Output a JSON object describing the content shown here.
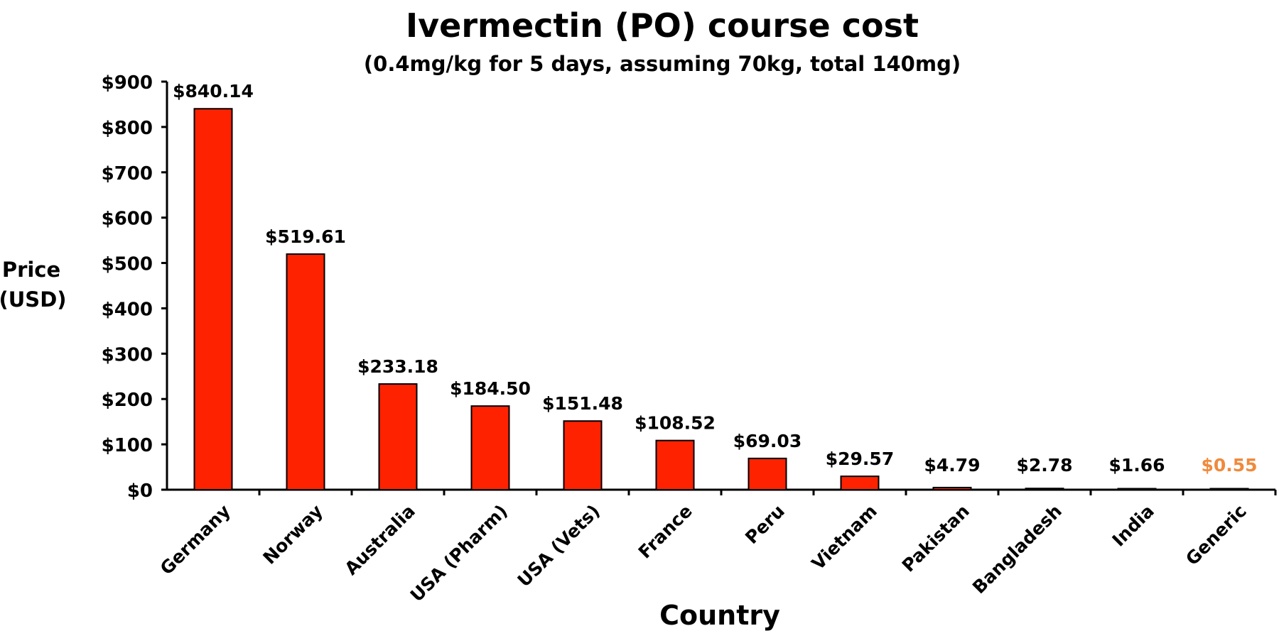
{
  "chart_data": {
    "type": "bar",
    "title": "Ivermectin (PO) course cost",
    "subtitle": "(0.4mg/kg for 5 days, assuming 70kg, total 140mg)",
    "xlabel": "Country",
    "ylabel": [
      "Price",
      "(USD)"
    ],
    "categories": [
      "Germany",
      "Norway",
      "Australia",
      "USA (Pharm)",
      "USA (Vets)",
      "France",
      "Peru",
      "Vietnam",
      "Pakistan",
      "Bangladesh",
      "India",
      "Generic"
    ],
    "values": [
      840.14,
      519.61,
      233.18,
      184.5,
      151.48,
      108.52,
      69.03,
      29.57,
      4.79,
      2.78,
      1.66,
      0.55
    ],
    "data_labels": [
      "$840.14",
      "$519.61",
      "$233.18",
      "$184.50",
      "$151.48",
      "$108.52",
      "$69.03",
      "$29.57",
      "$4.79",
      "$2.78",
      "$1.66",
      "$0.55"
    ],
    "label_colors": [
      "#000000",
      "#000000",
      "#000000",
      "#000000",
      "#000000",
      "#000000",
      "#000000",
      "#000000",
      "#000000",
      "#000000",
      "#000000",
      "#ef8a3c"
    ],
    "ylim": [
      0,
      900
    ],
    "yticks": [
      0,
      100,
      200,
      300,
      400,
      500,
      600,
      700,
      800,
      900
    ],
    "ytick_labels": [
      "$0",
      "$100",
      "$200",
      "$300",
      "$400",
      "$500",
      "$600",
      "$700",
      "$800",
      "$900"
    ],
    "bar_color": "#ff2200",
    "bar_outline": "#000000",
    "grid": false,
    "legend": "none"
  }
}
